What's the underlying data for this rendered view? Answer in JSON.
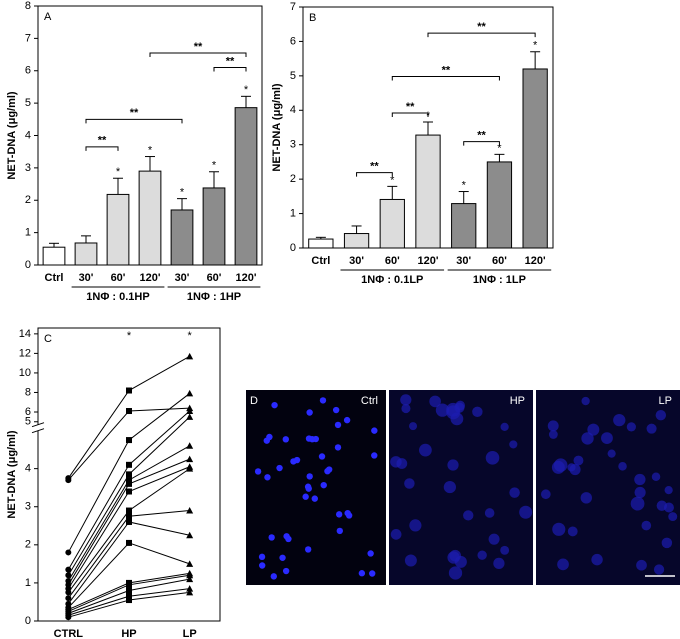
{
  "chart_data": [
    {
      "type": "bar",
      "panel": "A",
      "ylabel": "NET-DNA (μg/ml)",
      "categories": [
        "Ctrl",
        "30'",
        "60'",
        "120'",
        "30'",
        "60'",
        "120'"
      ],
      "values": [
        0.55,
        0.68,
        2.18,
        2.9,
        1.7,
        2.38,
        4.86
      ],
      "errors": [
        0.12,
        0.22,
        0.5,
        0.45,
        0.35,
        0.5,
        0.35
      ],
      "colors": [
        "#ffffff",
        "#dcdcdc",
        "#dcdcdc",
        "#dcdcdc",
        "#8c8c8c",
        "#8c8c8c",
        "#8c8c8c"
      ],
      "stars": [
        null,
        null,
        "*",
        "*",
        "*",
        "*",
        "*"
      ],
      "brackets": [
        {
          "from": 1,
          "to": 2,
          "y": 3.65,
          "label": "**"
        },
        {
          "from": 1,
          "to": 4,
          "y": 4.5,
          "label": "**"
        },
        {
          "from": 3,
          "to": 6,
          "y": 6.55,
          "label": "**"
        },
        {
          "from": 5,
          "to": 6,
          "y": 6.1,
          "label": "**"
        }
      ],
      "groups": [
        {
          "from": 1,
          "to": 3,
          "label": "1NΦ : 0.1HP"
        },
        {
          "from": 4,
          "to": 6,
          "label": "1NΦ : 1HP"
        }
      ],
      "ylim": [
        0,
        8
      ],
      "yticks": [
        0,
        1,
        2,
        3,
        4,
        5,
        6,
        7,
        8
      ]
    },
    {
      "type": "bar",
      "panel": "B",
      "ylabel": "NET-DNA (μg/ml)",
      "categories": [
        "Ctrl",
        "30'",
        "60'",
        "120'",
        "30'",
        "60'",
        "120'"
      ],
      "values": [
        0.26,
        0.42,
        1.41,
        3.28,
        1.29,
        2.5,
        5.2
      ],
      "errors": [
        0.05,
        0.22,
        0.38,
        0.38,
        0.35,
        0.22,
        0.5
      ],
      "colors": [
        "#ffffff",
        "#dcdcdc",
        "#dcdcdc",
        "#dcdcdc",
        "#8c8c8c",
        "#8c8c8c",
        "#8c8c8c"
      ],
      "stars": [
        null,
        null,
        "*",
        "*",
        "*",
        "*",
        "*"
      ],
      "brackets": [
        {
          "from": 1,
          "to": 2,
          "y": 2.19,
          "label": "**"
        },
        {
          "from": 2,
          "to": 3,
          "y": 3.92,
          "label": "**"
        },
        {
          "from": 4,
          "to": 5,
          "y": 3.09,
          "label": "**"
        },
        {
          "from": 2,
          "to": 5,
          "y": 4.98,
          "label": "**"
        },
        {
          "from": 3,
          "to": 6,
          "y": 6.24,
          "label": "**"
        }
      ],
      "groups": [
        {
          "from": 1,
          "to": 3,
          "label": "1NΦ : 0.1LP"
        },
        {
          "from": 4,
          "to": 6,
          "label": "1NΦ : 1LP"
        }
      ],
      "ylim": [
        0,
        7
      ],
      "yticks": [
        0,
        1,
        2,
        3,
        4,
        5,
        6,
        7
      ]
    },
    {
      "type": "line",
      "panel": "C",
      "ylabel": "NET-DNA (μg/ml)",
      "categories": [
        "CTRL",
        "HP",
        "LP"
      ],
      "stars": [
        null,
        "*",
        "*"
      ],
      "markers": [
        "circle",
        "square",
        "triangle"
      ],
      "color": "#000000",
      "axis_break": 5,
      "ylim": [
        0,
        14
      ],
      "yticks": [
        0,
        1,
        2,
        3,
        4,
        5,
        6,
        8,
        10,
        12,
        14
      ],
      "series": [
        {
          "values": [
            3.75,
            8.2,
            11.7
          ]
        },
        {
          "values": [
            3.7,
            6.1,
            6.4
          ]
        },
        {
          "values": [
            1.8,
            4.75,
            7.9
          ]
        },
        {
          "values": [
            1.35,
            4.1,
            6.1
          ]
        },
        {
          "values": [
            1.2,
            3.85,
            5.5
          ]
        },
        {
          "values": [
            1.05,
            3.7,
            4.6
          ]
        },
        {
          "values": [
            0.95,
            3.6,
            4.25
          ]
        },
        {
          "values": [
            0.85,
            3.4,
            4.05
          ]
        },
        {
          "values": [
            0.75,
            2.9,
            4.0
          ]
        },
        {
          "values": [
            0.6,
            2.75,
            2.9
          ]
        },
        {
          "values": [
            0.45,
            2.6,
            2.25
          ]
        },
        {
          "values": [
            0.35,
            2.05,
            1.5
          ]
        },
        {
          "values": [
            0.3,
            1.0,
            1.25
          ]
        },
        {
          "values": [
            0.25,
            0.95,
            1.2
          ]
        },
        {
          "values": [
            0.2,
            0.8,
            1.1
          ]
        },
        {
          "values": [
            0.15,
            0.65,
            0.85
          ]
        },
        {
          "values": [
            0.1,
            0.55,
            0.75
          ]
        }
      ]
    }
  ],
  "panel_d": {
    "label": "D",
    "images": [
      "Ctrl",
      "HP",
      "LP"
    ]
  }
}
